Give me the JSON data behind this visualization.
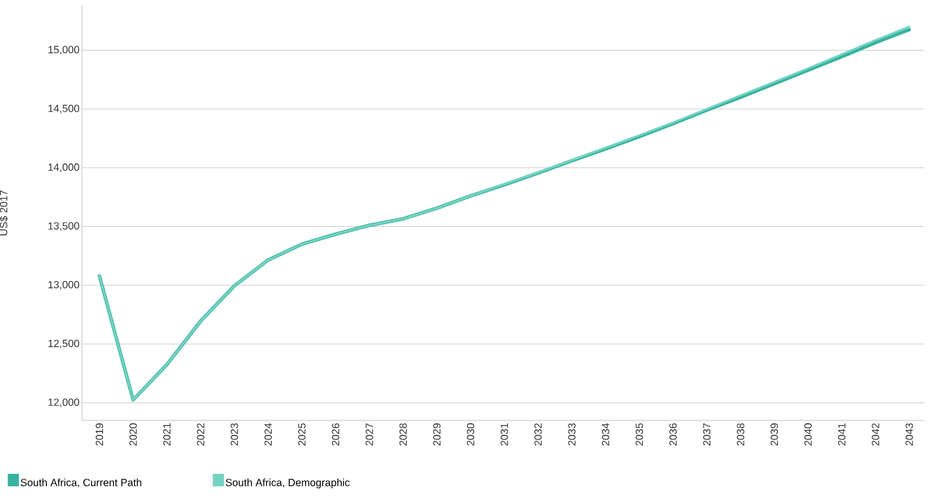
{
  "chart_data": {
    "type": "line",
    "ylabel": "US$ 2017",
    "categories": [
      "2019",
      "2020",
      "2021",
      "2022",
      "2023",
      "2024",
      "2025",
      "2026",
      "2027",
      "2028",
      "2029",
      "2030",
      "2031",
      "2032",
      "2033",
      "2034",
      "2035",
      "2036",
      "2037",
      "2038",
      "2039",
      "2040",
      "2041",
      "2042",
      "2043"
    ],
    "series": [
      {
        "name": "South Africa, Current Path",
        "color": "#38b39e",
        "values": [
          13080,
          12025,
          12325,
          12695,
          12995,
          13215,
          13350,
          13435,
          13510,
          13565,
          13655,
          13760,
          13855,
          13955,
          14060,
          14160,
          14265,
          14375,
          14490,
          14600,
          14715,
          14830,
          14945,
          15065,
          15175
        ]
      },
      {
        "name": "South Africa, Demographic",
        "color": "#74d3c3",
        "values": [
          13080,
          12025,
          12325,
          12695,
          12995,
          13215,
          13350,
          13435,
          13510,
          13565,
          13655,
          13760,
          13860,
          13960,
          14065,
          14170,
          14275,
          14385,
          14500,
          14615,
          14730,
          14845,
          14965,
          15085,
          15200
        ]
      }
    ],
    "ylim": [
      11850,
      15380
    ],
    "yticks": [
      {
        "value": 12000,
        "label": "12,000"
      },
      {
        "value": 12500,
        "label": "12,500"
      },
      {
        "value": 13000,
        "label": "13,000"
      },
      {
        "value": 13500,
        "label": "13,500"
      },
      {
        "value": 14000,
        "label": "14,000"
      },
      {
        "value": 14500,
        "label": "14,500"
      },
      {
        "value": 15000,
        "label": "15,000"
      }
    ],
    "grid": "y",
    "legend": "bottom"
  }
}
